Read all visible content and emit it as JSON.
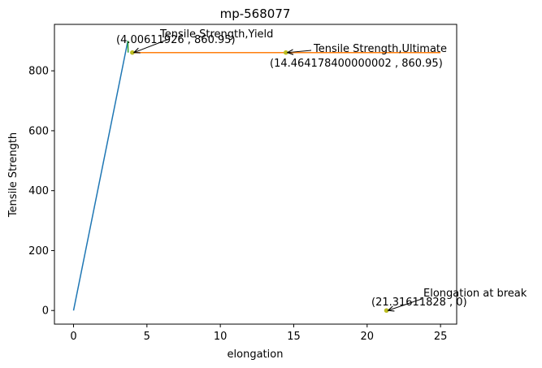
{
  "chart_data": {
    "type": "line",
    "title": "mp-568077",
    "xlabel": "elongation",
    "ylabel": "Tensile Strength",
    "xlim": [
      -1.3,
      26.1
    ],
    "ylim": [
      -45.5,
      955
    ],
    "xticks": [
      0,
      5,
      10,
      15,
      20,
      25
    ],
    "yticks": [
      0,
      200,
      400,
      600,
      800
    ],
    "grid": false,
    "series": [
      {
        "color": "#1f77b4",
        "x": [
          0,
          3.7
        ],
        "y": [
          0,
          900
        ]
      },
      {
        "color": "#ff7f0e",
        "x": [
          4.006,
          14.464,
          25.0
        ],
        "y": [
          860.95,
          860.95,
          860.95
        ]
      },
      {
        "color": "#2ca02c",
        "x": [
          3.7,
          3.72
        ],
        "y": [
          900,
          860.95
        ]
      }
    ],
    "points": [
      {
        "x": 4.00611926,
        "y": 860.95,
        "color": "#bcbd22"
      },
      {
        "x": 14.464178400000002,
        "y": 860.95,
        "color": "#bcbd22"
      },
      {
        "x": 21.31611828,
        "y": 0,
        "color": "#bcbd22"
      }
    ],
    "annotations": [
      {
        "label": "Tensile Strength,Yield",
        "coords": "(4.00611926 , 860.95)",
        "x": 4.00611926,
        "y": 860.95
      },
      {
        "label": "Tensile Strength,Ultimate",
        "coords": "(14.464178400000002 , 860.95)",
        "x": 14.464178400000002,
        "y": 860.95
      },
      {
        "label": "Elongation at break",
        "coords": "(21.31611828 , 0)",
        "x": 21.31611828,
        "y": 0
      }
    ]
  }
}
